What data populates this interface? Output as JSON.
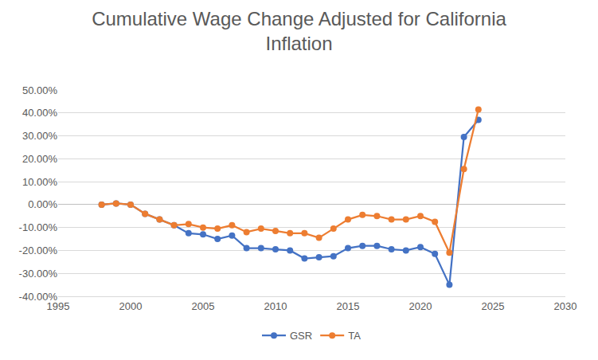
{
  "chart_data": {
    "type": "line",
    "title": "Cumulative Wage Change Adjusted for California\nInflation",
    "x": [
      1998,
      1999,
      2000,
      2001,
      2002,
      2003,
      2004,
      2005,
      2006,
      2007,
      2008,
      2009,
      2010,
      2011,
      2012,
      2013,
      2014,
      2015,
      2016,
      2017,
      2018,
      2019,
      2020,
      2021,
      2022,
      2023,
      2024
    ],
    "series": [
      {
        "name": "GSR",
        "color": "#4472c4",
        "marker": "circle",
        "line_style": "solid",
        "values": [
          0,
          0.5,
          0,
          -4,
          -6.5,
          -9,
          -12.5,
          -13,
          -15,
          -13.5,
          -19,
          -19,
          -19.5,
          -20,
          -23.5,
          -23,
          -22.5,
          -19,
          -18,
          -18,
          -19.5,
          -20,
          -18.5,
          -21.5,
          -35,
          29.5,
          37
        ]
      },
      {
        "name": "TA",
        "color": "#ed7d31",
        "marker": "circle",
        "line_style": "solid",
        "values": [
          0,
          0.5,
          0,
          -4,
          -6.5,
          -9,
          -8.5,
          -10,
          -10.5,
          -9,
          -12,
          -10.5,
          -11.5,
          -12.5,
          -12.5,
          -14.5,
          -10.5,
          -6.5,
          -4.5,
          -5,
          -6.5,
          -6.5,
          -5,
          -7.5,
          -21,
          15.5,
          41.5
        ]
      }
    ],
    "xlim": [
      1995,
      2030
    ],
    "xticks": [
      1995,
      2000,
      2005,
      2010,
      2015,
      2020,
      2025,
      2030
    ],
    "ylim": [
      -40,
      50
    ],
    "yticks": [
      {
        "value": -40,
        "label": "-40.00%"
      },
      {
        "value": -30,
        "label": "-30.00%"
      },
      {
        "value": -20,
        "label": "-20.00%"
      },
      {
        "value": -10,
        "label": "-10.00%"
      },
      {
        "value": 0,
        "label": "0.00%"
      },
      {
        "value": 10,
        "label": "10.00%"
      },
      {
        "value": 20,
        "label": "20.00%"
      },
      {
        "value": 30,
        "label": "30.00%"
      },
      {
        "value": 40,
        "label": "40.00%"
      },
      {
        "value": 50,
        "label": "50.00%"
      }
    ],
    "grid": true,
    "legend": "bottom"
  }
}
